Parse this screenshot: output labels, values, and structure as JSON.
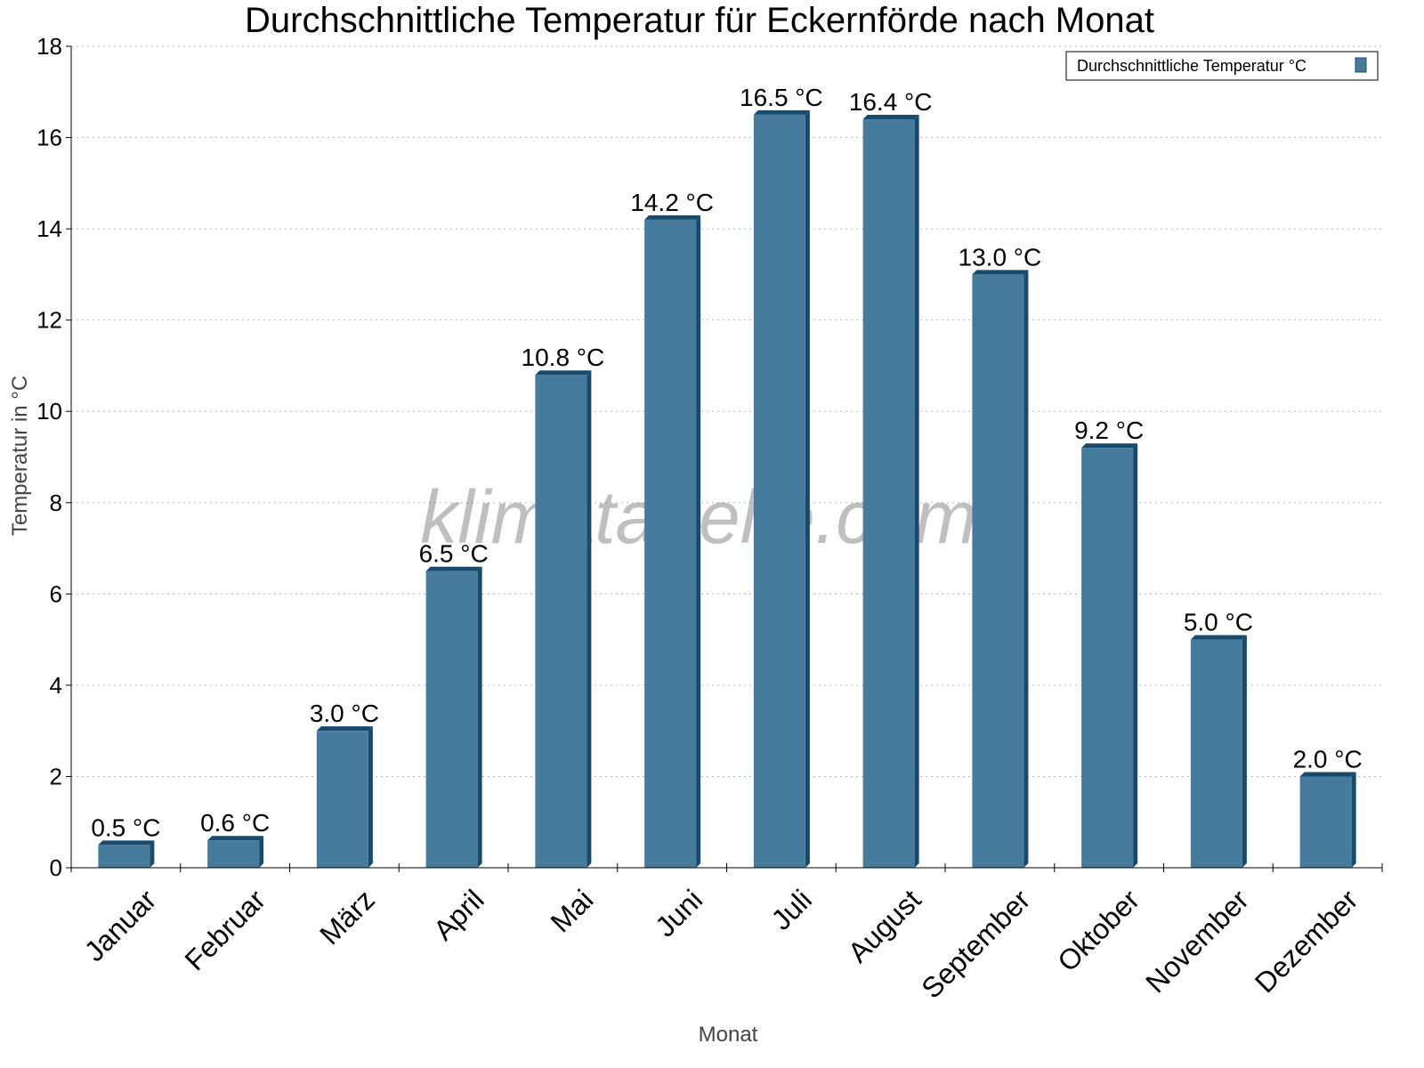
{
  "chart_data": {
    "type": "bar",
    "title": "Durchschnittliche Temperatur für Eckernförde nach Monat",
    "xlabel": "Monat",
    "ylabel": "Temperatur in °C",
    "categories": [
      "Januar",
      "Februar",
      "März",
      "April",
      "Mai",
      "Juni",
      "Juli",
      "August",
      "September",
      "Oktober",
      "November",
      "Dezember"
    ],
    "series": [
      {
        "name": "Durchschnittliche Temperatur °C",
        "values": [
          0.5,
          0.6,
          3.0,
          6.5,
          10.8,
          14.2,
          16.5,
          16.4,
          13.0,
          9.2,
          5.0,
          2.0
        ],
        "labels": [
          "0.5 °C",
          "0.6 °C",
          "3.0 °C",
          "6.5 °C",
          "10.8 °C",
          "14.2 °C",
          "16.5 °C",
          "16.4 °C",
          "13.0 °C",
          "9.2 °C",
          "5.0 °C",
          "2.0 °C"
        ]
      }
    ],
    "ylim": [
      0,
      18
    ],
    "yticks": [
      0,
      2,
      4,
      6,
      8,
      10,
      12,
      14,
      16,
      18
    ],
    "grid": true,
    "legend_position": "top-right",
    "colors": {
      "bar_front": "#467b9e",
      "bar_top_side": "#1a4a6b"
    },
    "watermark": "klimatabelle.com"
  }
}
